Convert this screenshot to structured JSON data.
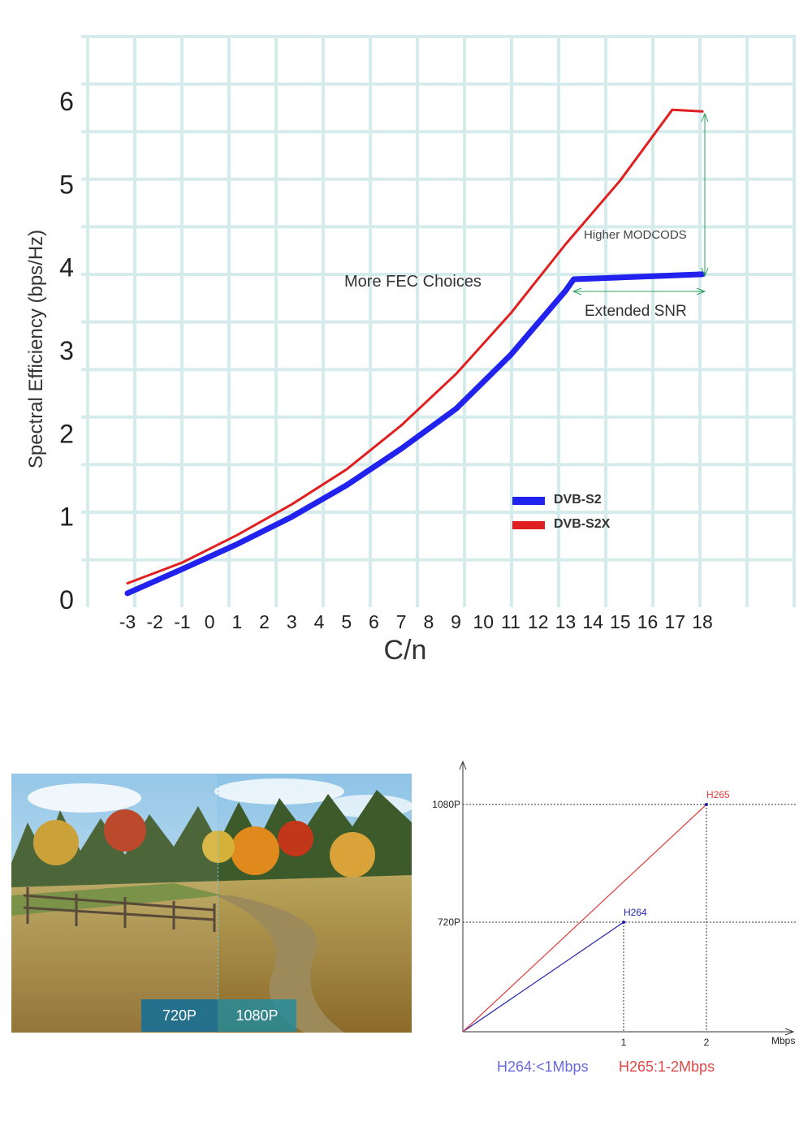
{
  "chart_data": [
    {
      "type": "line",
      "title": "",
      "xlabel": "C/n",
      "ylabel": "Spectral Efficiency (bps/Hz)",
      "xlim": [
        -3,
        18
      ],
      "ylim": [
        0,
        6
      ],
      "x_ticks": [
        "-3",
        "-2",
        "-1",
        "0",
        "1",
        "2",
        "3",
        "4",
        "5",
        "6",
        "7",
        "8",
        "9",
        "10",
        "11",
        "12",
        "13",
        "14",
        "15",
        "16",
        "17",
        "18"
      ],
      "y_ticks": [
        "0",
        "1",
        "2",
        "3",
        "4",
        "5",
        "6"
      ],
      "grid": true,
      "legend_position": "lower-right",
      "series": [
        {
          "name": "DVB-S2",
          "color": "#2222ee",
          "x": [
            -3,
            -1,
            1,
            3,
            5,
            7,
            9,
            11,
            13,
            13.3,
            18
          ],
          "y": [
            0.08,
            0.37,
            0.67,
            1.0,
            1.38,
            1.82,
            2.3,
            2.95,
            3.72,
            3.86,
            3.92
          ]
        },
        {
          "name": "DVB-S2X",
          "color": "#e02020",
          "x": [
            -3,
            -1,
            1,
            3,
            5,
            7,
            9,
            11,
            13,
            15,
            16.9,
            18
          ],
          "y": [
            0.2,
            0.45,
            0.78,
            1.15,
            1.57,
            2.1,
            2.72,
            3.45,
            4.28,
            5.05,
            5.9,
            5.88
          ]
        }
      ],
      "annotations": {
        "more_fec": "More FEC Choices",
        "higher_modcods": "Higher MODCODS",
        "extended_snr": "Extended SNR"
      }
    },
    {
      "type": "line",
      "title": "",
      "xlabel": "Mbps",
      "ylabel": "",
      "x_ticks": [
        "1",
        "2"
      ],
      "y_ticks": [
        "720P",
        "1080P"
      ],
      "series": [
        {
          "name": "H264",
          "color": "#2222aa",
          "x": [
            0,
            1
          ],
          "y": [
            0,
            720
          ]
        },
        {
          "name": "H265",
          "color": "#e03a3a",
          "x": [
            0,
            2
          ],
          "y": [
            0,
            1080
          ]
        }
      ],
      "captions": {
        "h264": "H264:<1Mbps",
        "h265": "H265:1-2Mbps"
      }
    }
  ],
  "photo": {
    "left_label": "720P",
    "right_label": "1080P"
  }
}
